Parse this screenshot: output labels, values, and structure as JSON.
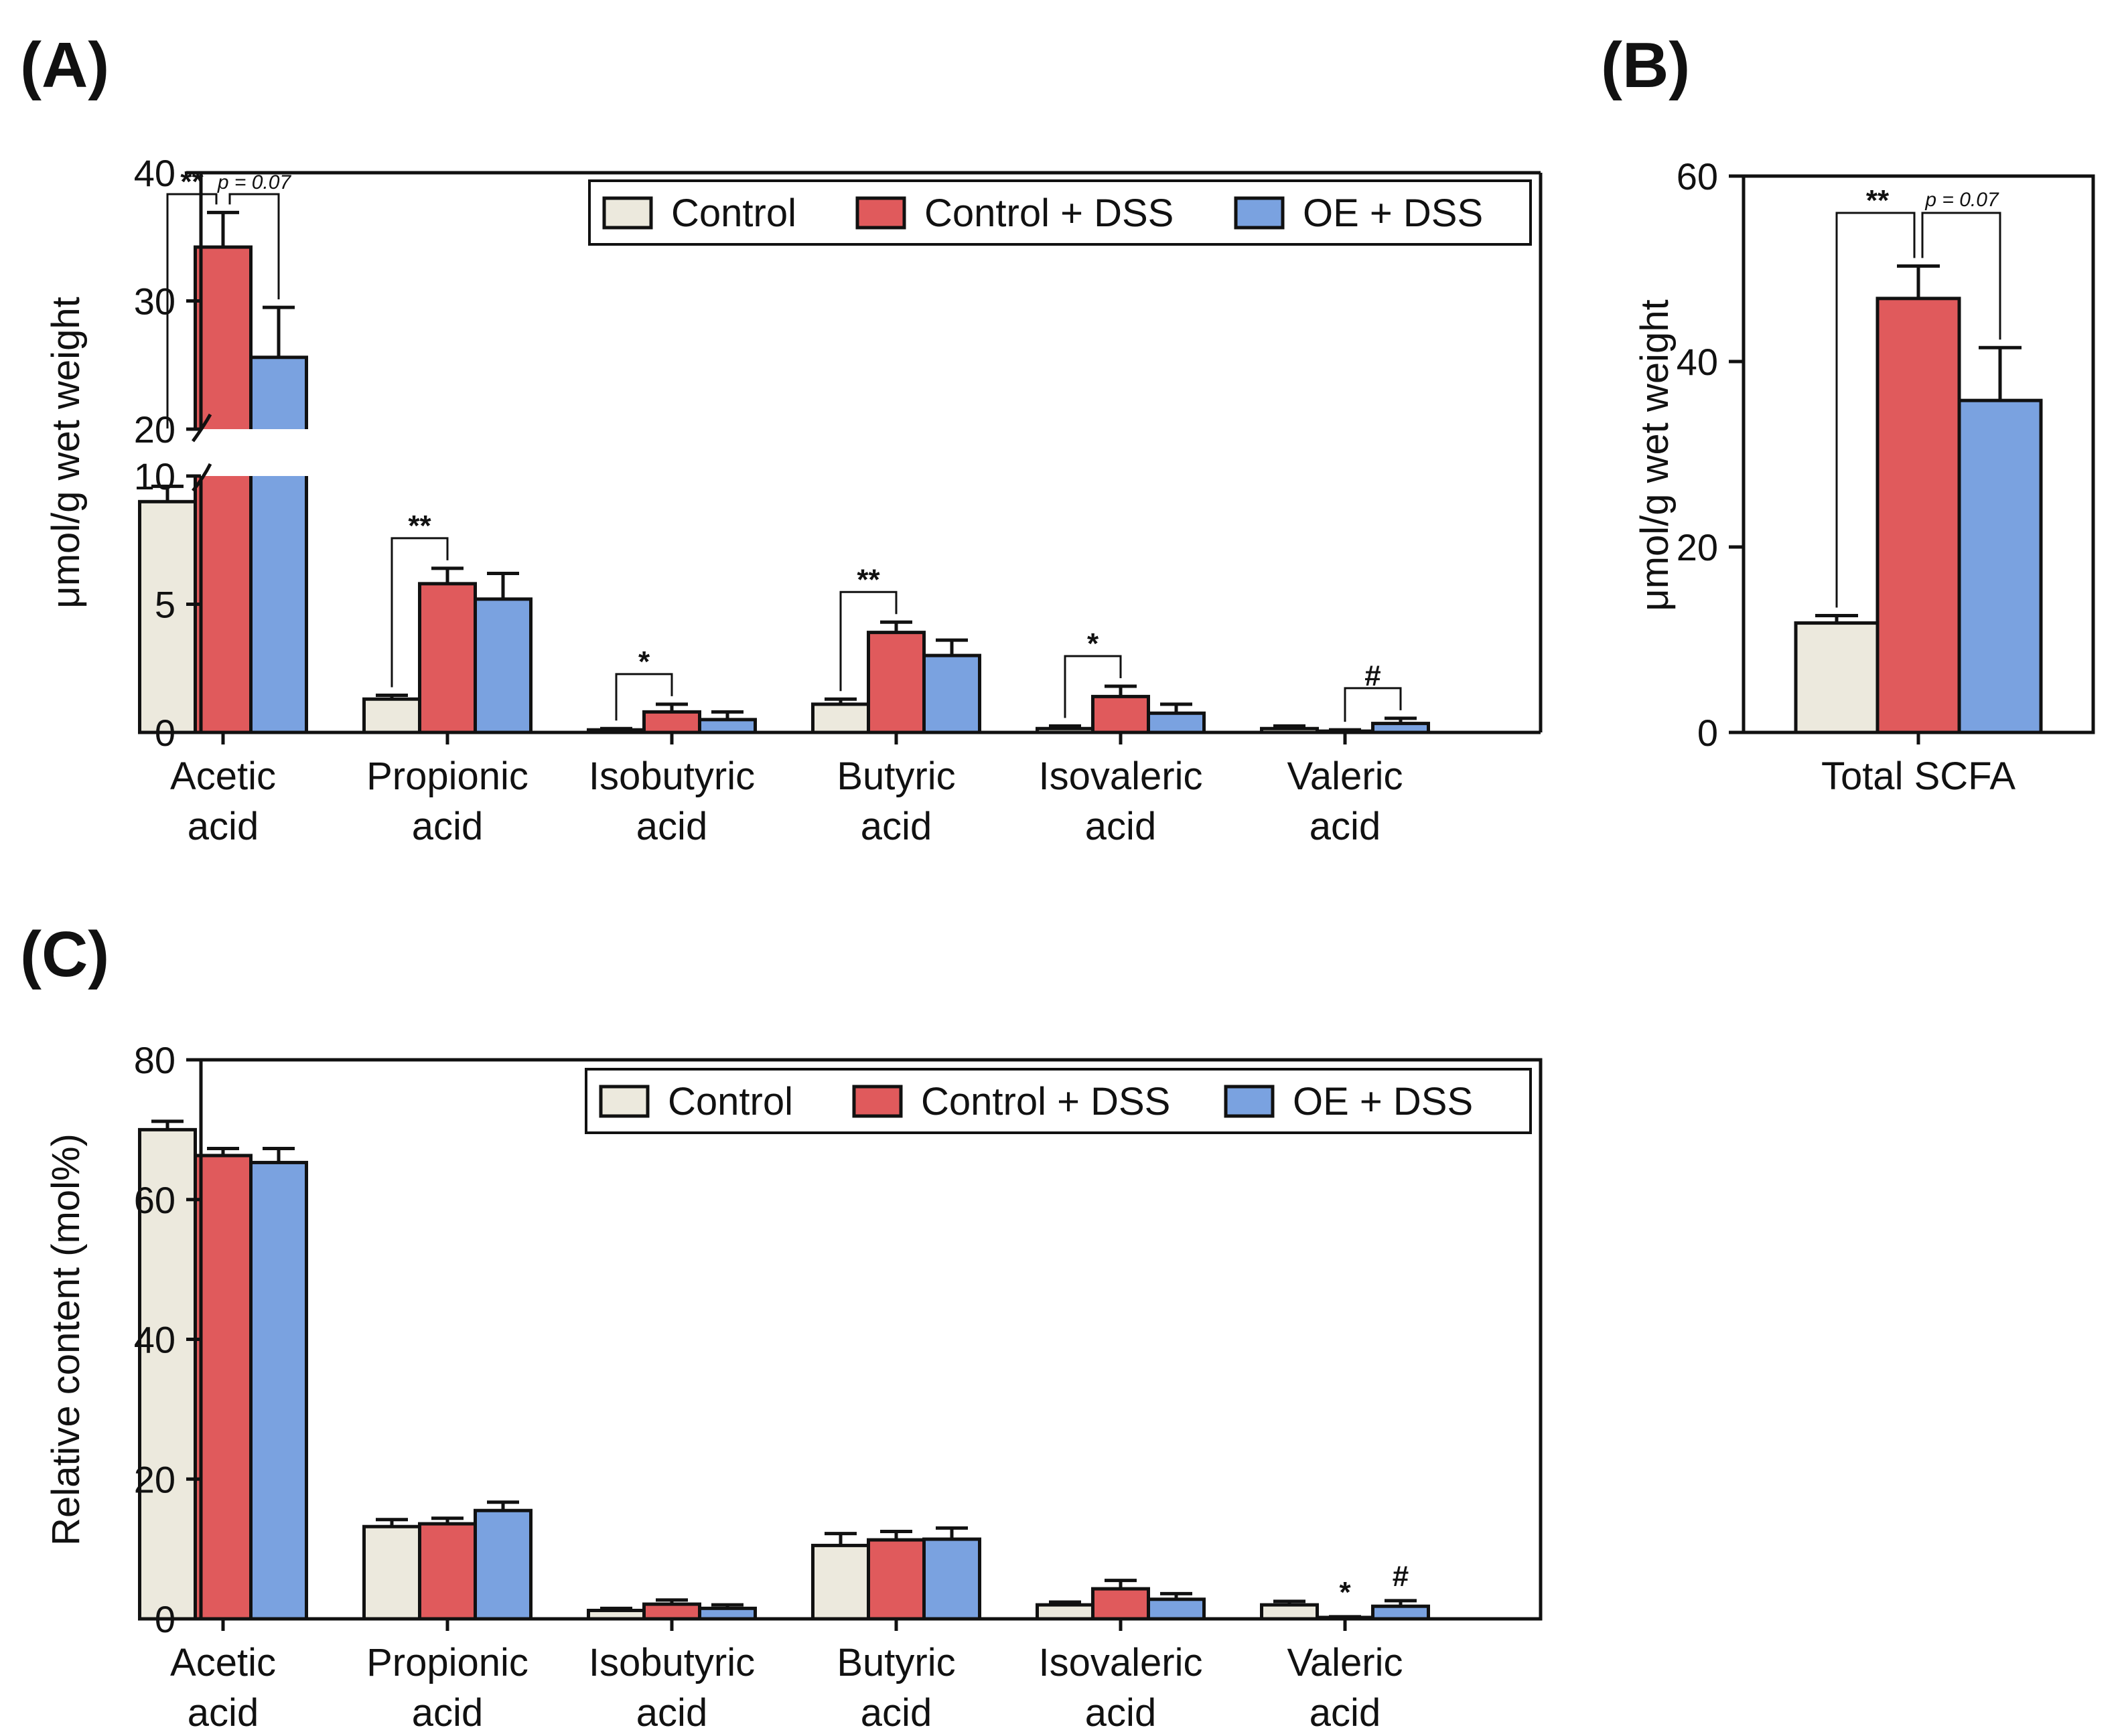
{
  "colors": {
    "control": "#ece9dd",
    "control_dss": "#e05a5c",
    "oe_dss": "#7aa2e0",
    "stroke": "#111111"
  },
  "chart_data": [
    {
      "panel": "(A)",
      "type": "bar",
      "ylabel": "μmol/g wet weight",
      "ylim": [
        0,
        40
      ],
      "axis_break": [
        10,
        20
      ],
      "yticks": [
        "0",
        "5",
        "10",
        "20",
        "30",
        "40"
      ],
      "categories": [
        [
          "Acetic",
          "acid"
        ],
        [
          "Propionic",
          "acid"
        ],
        [
          "Isobutyric",
          "acid"
        ],
        [
          "Butyric",
          "acid"
        ],
        [
          "Isovaleric",
          "acid"
        ],
        [
          "Valeric",
          "acid"
        ]
      ],
      "legend": [
        "Control",
        "Control + DSS",
        "OE + DSS"
      ],
      "legend_position": "top-right",
      "series": [
        {
          "name": "Control",
          "values": [
            9.0,
            1.3,
            0.1,
            1.1,
            0.15,
            0.15
          ],
          "errors": [
            0.6,
            0.15,
            0.05,
            0.2,
            0.1,
            0.1
          ]
        },
        {
          "name": "Control + DSS",
          "values": [
            34.2,
            5.8,
            0.8,
            3.9,
            1.4,
            0.05
          ],
          "errors": [
            2.7,
            0.6,
            0.3,
            0.4,
            0.4,
            0.05
          ]
        },
        {
          "name": "OE + DSS",
          "values": [
            25.6,
            5.2,
            0.5,
            3.0,
            0.75,
            0.35
          ],
          "errors": [
            3.9,
            1.0,
            0.3,
            0.6,
            0.35,
            0.2
          ]
        }
      ],
      "annotations": [
        {
          "text": "**",
          "category": 0,
          "between": [
            0,
            1
          ]
        },
        {
          "text": "p = 0.07",
          "category": 0,
          "between": [
            1,
            2
          ]
        },
        {
          "text": "**",
          "category": 1,
          "between": [
            0,
            1
          ]
        },
        {
          "text": "*",
          "category": 2,
          "between": [
            0,
            1
          ]
        },
        {
          "text": "**",
          "category": 3,
          "between": [
            0,
            1
          ]
        },
        {
          "text": "*",
          "category": 4,
          "between": [
            0,
            1
          ]
        },
        {
          "text": "#",
          "category": 5,
          "between": [
            1,
            2
          ]
        }
      ]
    },
    {
      "panel": "(B)",
      "type": "bar",
      "ylabel": "μmol/g wet weight",
      "ylim": [
        0,
        60
      ],
      "yticks": [
        "0",
        "20",
        "40",
        "60"
      ],
      "categories": [
        "Total SCFA"
      ],
      "series": [
        {
          "name": "Control",
          "values": [
            11.8
          ],
          "errors": [
            0.8
          ]
        },
        {
          "name": "Control + DSS",
          "values": [
            46.8
          ],
          "errors": [
            3.5
          ]
        },
        {
          "name": "OE + DSS",
          "values": [
            35.8
          ],
          "errors": [
            5.7
          ]
        }
      ],
      "annotations": [
        {
          "text": "**",
          "category": 0,
          "between": [
            0,
            1
          ]
        },
        {
          "text": "p = 0.07",
          "category": 0,
          "between": [
            1,
            2
          ]
        }
      ]
    },
    {
      "panel": "(C)",
      "type": "bar",
      "ylabel": "Relative content (mol%)",
      "ylim": [
        0,
        80
      ],
      "yticks": [
        "0",
        "20",
        "40",
        "60",
        "80"
      ],
      "categories": [
        [
          "Acetic",
          "acid"
        ],
        [
          "Propionic",
          "acid"
        ],
        [
          "Isobutyric",
          "acid"
        ],
        [
          "Butyric",
          "acid"
        ],
        [
          "Isovaleric",
          "acid"
        ],
        [
          "Valeric",
          "acid"
        ]
      ],
      "legend": [
        "Control",
        "Control + DSS",
        "OE + DSS"
      ],
      "legend_position": "top-right",
      "series": [
        {
          "name": "Control",
          "values": [
            70.0,
            13.2,
            1.2,
            10.5,
            2.0,
            2.0
          ],
          "errors": [
            1.2,
            1.0,
            0.3,
            1.7,
            0.4,
            0.5
          ]
        },
        {
          "name": "Control + DSS",
          "values": [
            66.3,
            13.6,
            2.1,
            11.3,
            4.3,
            0.2
          ],
          "errors": [
            1.0,
            0.8,
            0.6,
            1.2,
            1.2,
            0.1
          ]
        },
        {
          "name": "OE + DSS",
          "values": [
            65.3,
            15.5,
            1.5,
            11.4,
            2.8,
            1.8
          ],
          "errors": [
            2.0,
            1.2,
            0.5,
            1.6,
            0.8,
            0.8
          ]
        }
      ],
      "annotations": [
        {
          "text": "*",
          "category": 5,
          "bar": 1
        },
        {
          "text": "#",
          "category": 5,
          "bar": 2
        }
      ]
    }
  ]
}
